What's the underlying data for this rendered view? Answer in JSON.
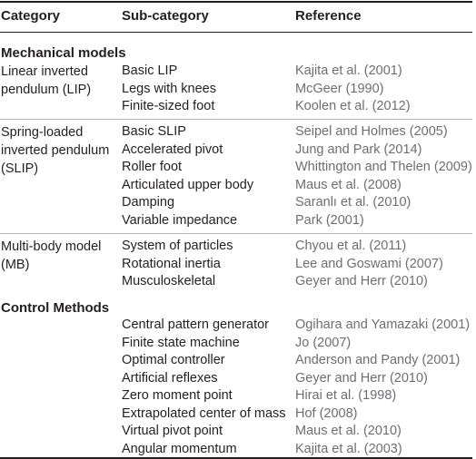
{
  "header": {
    "category": "Category",
    "subcategory": "Sub-category",
    "reference": "Reference"
  },
  "sections": {
    "mechanical": "Mechanical models",
    "control": "Control Methods"
  },
  "groups": {
    "lip": {
      "category_lines": [
        "Linear inverted",
        "pendulum (LIP)"
      ],
      "rows": [
        {
          "sub": "Basic LIP",
          "ref": "Kajita et al. (2001)"
        },
        {
          "sub": "Legs with knees",
          "ref": "McGeer (1990)"
        },
        {
          "sub": "Finite-sized foot",
          "ref": "Koolen et al. (2012)"
        }
      ]
    },
    "slip": {
      "category_lines": [
        "Spring-loaded",
        "inverted pendulum",
        "(SLIP)"
      ],
      "rows": [
        {
          "sub": "Basic SLIP",
          "ref": "Seipel and Holmes (2005)"
        },
        {
          "sub": "Accelerated pivot",
          "ref": "Jung and Park (2014)"
        },
        {
          "sub": "Roller foot",
          "ref": "Whittington and Thelen (2009)"
        },
        {
          "sub": "Articulated upper body",
          "ref": "Maus et al. (2008)"
        },
        {
          "sub": "Damping",
          "ref": "Saranlı et al. (2010)"
        },
        {
          "sub": "Variable impedance",
          "ref": "Park (2001)"
        }
      ]
    },
    "mb": {
      "category_lines": [
        "Multi-body model",
        "(MB)"
      ],
      "rows": [
        {
          "sub": "System of particles",
          "ref": "Chyou et al. (2011)"
        },
        {
          "sub": "Rotational inertia",
          "ref": "Lee and Goswami (2007)"
        },
        {
          "sub": "Musculoskeletal",
          "ref": "Geyer and Herr (2010)"
        }
      ]
    },
    "control": {
      "rows": [
        {
          "sub": "Central pattern generator",
          "ref": "Ogihara and Yamazaki (2001)"
        },
        {
          "sub": "Finite state machine",
          "ref": "Jo (2007)"
        },
        {
          "sub": "Optimal controller",
          "ref": "Anderson and Pandy (2001)"
        },
        {
          "sub": "Artificial reflexes",
          "ref": "Geyer and Herr (2010)"
        },
        {
          "sub": "Zero moment point",
          "ref": "Hirai et al. (1998)"
        },
        {
          "sub": "Extrapolated center of mass",
          "ref": "Hof (2008)"
        },
        {
          "sub": "Virtual pivot point",
          "ref": "Maus et al. (2010)"
        },
        {
          "sub": "Angular momentum",
          "ref": "Kajita et al. (2003)"
        }
      ]
    }
  }
}
